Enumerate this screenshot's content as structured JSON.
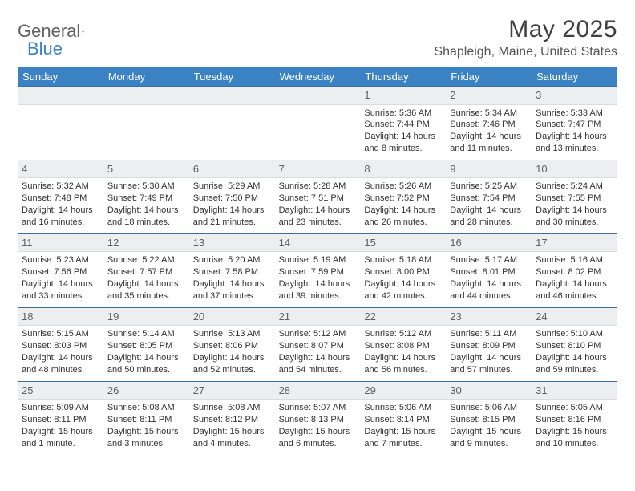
{
  "logo": {
    "general": "General",
    "blue": "Blue"
  },
  "title": "May 2025",
  "location": "Shapleigh, Maine, United States",
  "dow": [
    "Sunday",
    "Monday",
    "Tuesday",
    "Wednesday",
    "Thursday",
    "Friday",
    "Saturday"
  ],
  "colors": {
    "header_bar": "#3b82c4",
    "week_rule": "#3b6fa0",
    "daynum_bg": "#eceef0",
    "text": "#333333",
    "title_text": "#404040",
    "logo_blue": "#3b7fc4"
  },
  "weeks": [
    [
      {
        "n": "",
        "sr": "",
        "ss": "",
        "dl": ""
      },
      {
        "n": "",
        "sr": "",
        "ss": "",
        "dl": ""
      },
      {
        "n": "",
        "sr": "",
        "ss": "",
        "dl": ""
      },
      {
        "n": "",
        "sr": "",
        "ss": "",
        "dl": ""
      },
      {
        "n": "1",
        "sr": "Sunrise: 5:36 AM",
        "ss": "Sunset: 7:44 PM",
        "dl": "Daylight: 14 hours and 8 minutes."
      },
      {
        "n": "2",
        "sr": "Sunrise: 5:34 AM",
        "ss": "Sunset: 7:46 PM",
        "dl": "Daylight: 14 hours and 11 minutes."
      },
      {
        "n": "3",
        "sr": "Sunrise: 5:33 AM",
        "ss": "Sunset: 7:47 PM",
        "dl": "Daylight: 14 hours and 13 minutes."
      }
    ],
    [
      {
        "n": "4",
        "sr": "Sunrise: 5:32 AM",
        "ss": "Sunset: 7:48 PM",
        "dl": "Daylight: 14 hours and 16 minutes."
      },
      {
        "n": "5",
        "sr": "Sunrise: 5:30 AM",
        "ss": "Sunset: 7:49 PM",
        "dl": "Daylight: 14 hours and 18 minutes."
      },
      {
        "n": "6",
        "sr": "Sunrise: 5:29 AM",
        "ss": "Sunset: 7:50 PM",
        "dl": "Daylight: 14 hours and 21 minutes."
      },
      {
        "n": "7",
        "sr": "Sunrise: 5:28 AM",
        "ss": "Sunset: 7:51 PM",
        "dl": "Daylight: 14 hours and 23 minutes."
      },
      {
        "n": "8",
        "sr": "Sunrise: 5:26 AM",
        "ss": "Sunset: 7:52 PM",
        "dl": "Daylight: 14 hours and 26 minutes."
      },
      {
        "n": "9",
        "sr": "Sunrise: 5:25 AM",
        "ss": "Sunset: 7:54 PM",
        "dl": "Daylight: 14 hours and 28 minutes."
      },
      {
        "n": "10",
        "sr": "Sunrise: 5:24 AM",
        "ss": "Sunset: 7:55 PM",
        "dl": "Daylight: 14 hours and 30 minutes."
      }
    ],
    [
      {
        "n": "11",
        "sr": "Sunrise: 5:23 AM",
        "ss": "Sunset: 7:56 PM",
        "dl": "Daylight: 14 hours and 33 minutes."
      },
      {
        "n": "12",
        "sr": "Sunrise: 5:22 AM",
        "ss": "Sunset: 7:57 PM",
        "dl": "Daylight: 14 hours and 35 minutes."
      },
      {
        "n": "13",
        "sr": "Sunrise: 5:20 AM",
        "ss": "Sunset: 7:58 PM",
        "dl": "Daylight: 14 hours and 37 minutes."
      },
      {
        "n": "14",
        "sr": "Sunrise: 5:19 AM",
        "ss": "Sunset: 7:59 PM",
        "dl": "Daylight: 14 hours and 39 minutes."
      },
      {
        "n": "15",
        "sr": "Sunrise: 5:18 AM",
        "ss": "Sunset: 8:00 PM",
        "dl": "Daylight: 14 hours and 42 minutes."
      },
      {
        "n": "16",
        "sr": "Sunrise: 5:17 AM",
        "ss": "Sunset: 8:01 PM",
        "dl": "Daylight: 14 hours and 44 minutes."
      },
      {
        "n": "17",
        "sr": "Sunrise: 5:16 AM",
        "ss": "Sunset: 8:02 PM",
        "dl": "Daylight: 14 hours and 46 minutes."
      }
    ],
    [
      {
        "n": "18",
        "sr": "Sunrise: 5:15 AM",
        "ss": "Sunset: 8:03 PM",
        "dl": "Daylight: 14 hours and 48 minutes."
      },
      {
        "n": "19",
        "sr": "Sunrise: 5:14 AM",
        "ss": "Sunset: 8:05 PM",
        "dl": "Daylight: 14 hours and 50 minutes."
      },
      {
        "n": "20",
        "sr": "Sunrise: 5:13 AM",
        "ss": "Sunset: 8:06 PM",
        "dl": "Daylight: 14 hours and 52 minutes."
      },
      {
        "n": "21",
        "sr": "Sunrise: 5:12 AM",
        "ss": "Sunset: 8:07 PM",
        "dl": "Daylight: 14 hours and 54 minutes."
      },
      {
        "n": "22",
        "sr": "Sunrise: 5:12 AM",
        "ss": "Sunset: 8:08 PM",
        "dl": "Daylight: 14 hours and 56 minutes."
      },
      {
        "n": "23",
        "sr": "Sunrise: 5:11 AM",
        "ss": "Sunset: 8:09 PM",
        "dl": "Daylight: 14 hours and 57 minutes."
      },
      {
        "n": "24",
        "sr": "Sunrise: 5:10 AM",
        "ss": "Sunset: 8:10 PM",
        "dl": "Daylight: 14 hours and 59 minutes."
      }
    ],
    [
      {
        "n": "25",
        "sr": "Sunrise: 5:09 AM",
        "ss": "Sunset: 8:11 PM",
        "dl": "Daylight: 15 hours and 1 minute."
      },
      {
        "n": "26",
        "sr": "Sunrise: 5:08 AM",
        "ss": "Sunset: 8:11 PM",
        "dl": "Daylight: 15 hours and 3 minutes."
      },
      {
        "n": "27",
        "sr": "Sunrise: 5:08 AM",
        "ss": "Sunset: 8:12 PM",
        "dl": "Daylight: 15 hours and 4 minutes."
      },
      {
        "n": "28",
        "sr": "Sunrise: 5:07 AM",
        "ss": "Sunset: 8:13 PM",
        "dl": "Daylight: 15 hours and 6 minutes."
      },
      {
        "n": "29",
        "sr": "Sunrise: 5:06 AM",
        "ss": "Sunset: 8:14 PM",
        "dl": "Daylight: 15 hours and 7 minutes."
      },
      {
        "n": "30",
        "sr": "Sunrise: 5:06 AM",
        "ss": "Sunset: 8:15 PM",
        "dl": "Daylight: 15 hours and 9 minutes."
      },
      {
        "n": "31",
        "sr": "Sunrise: 5:05 AM",
        "ss": "Sunset: 8:16 PM",
        "dl": "Daylight: 15 hours and 10 minutes."
      }
    ]
  ]
}
